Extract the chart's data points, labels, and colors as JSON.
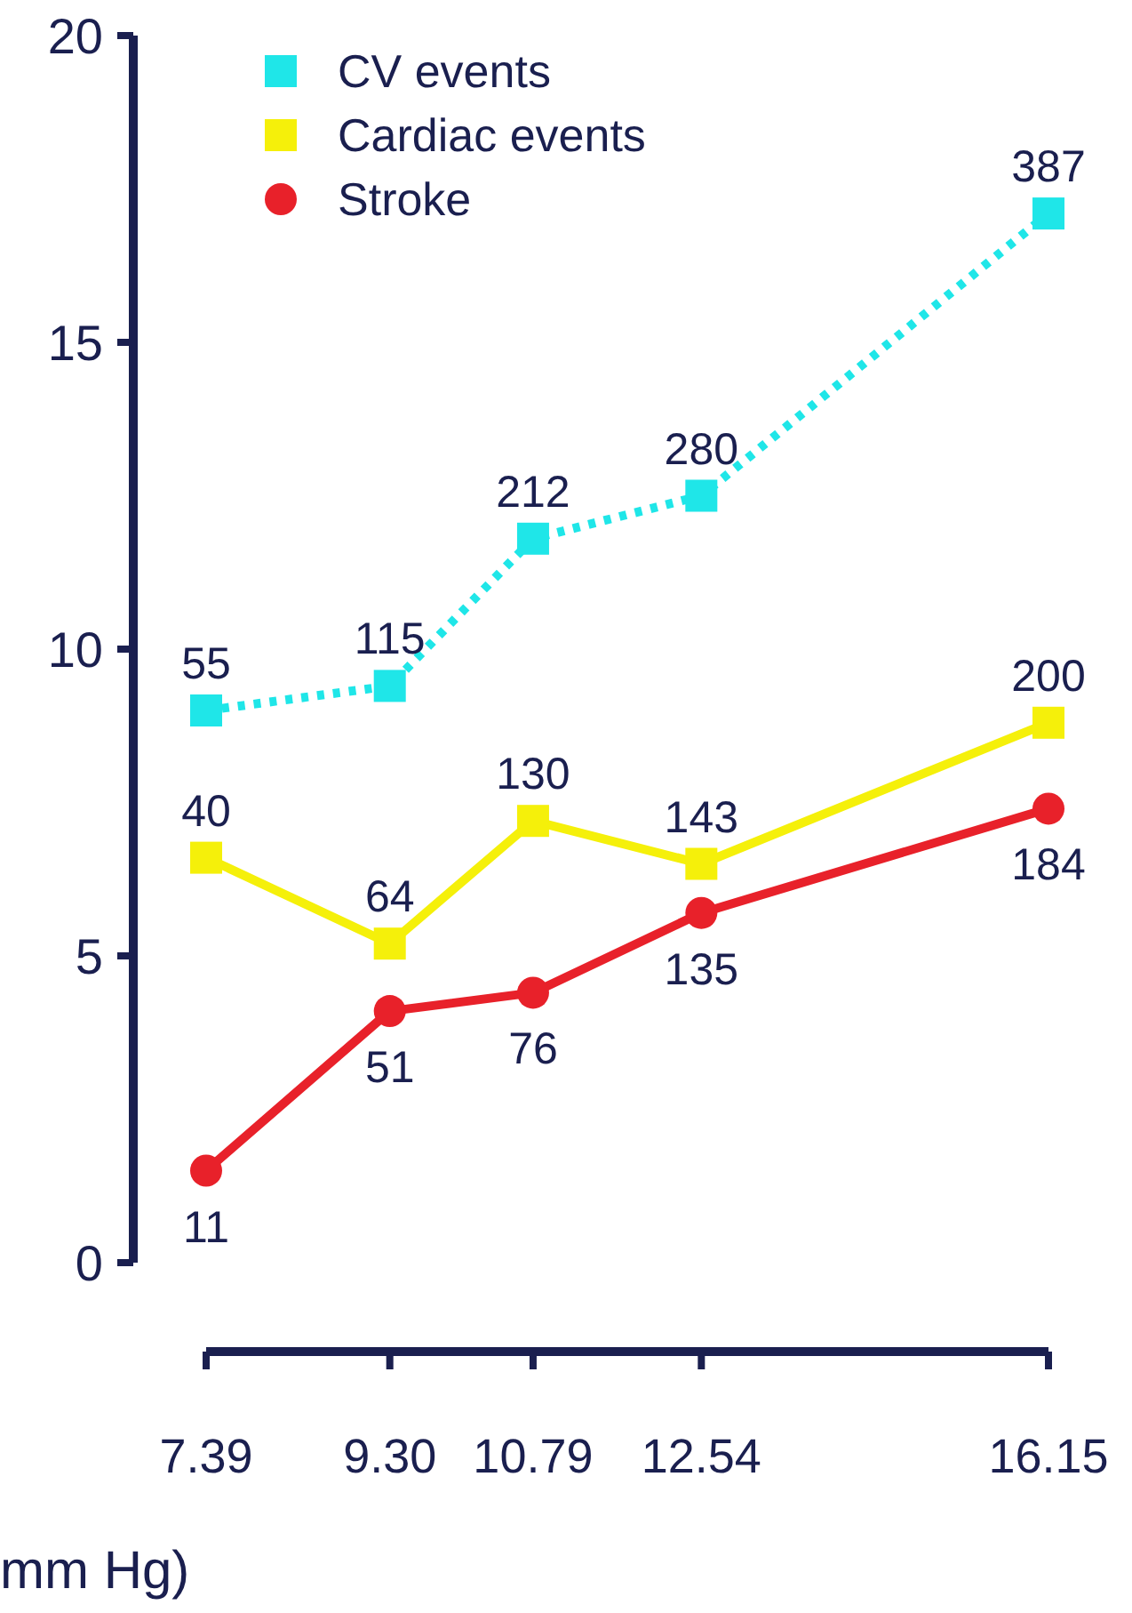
{
  "chart_data": {
    "type": "line",
    "xlabel": "mm Hg)",
    "x": [
      7.39,
      9.3,
      10.79,
      12.54,
      16.15
    ],
    "xlim": [
      7.39,
      16.15
    ],
    "xticks": [
      {
        "value": 7.39,
        "label": "7.39"
      },
      {
        "value": 9.3,
        "label": "9.30"
      },
      {
        "value": 10.79,
        "label": "10.79"
      },
      {
        "value": 12.54,
        "label": "12.54"
      },
      {
        "value": 16.15,
        "label": "16.15"
      }
    ],
    "ylim": [
      0,
      20
    ],
    "yticks": [
      0,
      5,
      10,
      15,
      20
    ],
    "grid": false,
    "legend": "top left",
    "series": [
      {
        "name": "CV events",
        "color": "#1fe6e8",
        "marker": "square",
        "line_style": "dotted",
        "values": [
          9.0,
          9.4,
          11.8,
          12.5,
          17.1
        ]
      },
      {
        "name": "Cardiac events",
        "color": "#f5f00a",
        "marker": "square",
        "line_style": "solid",
        "values": [
          6.6,
          5.2,
          7.2,
          6.5,
          8.8
        ]
      },
      {
        "name": "Stroke",
        "color": "#e8212a",
        "marker": "circle",
        "line_style": "solid",
        "values": [
          1.5,
          4.1,
          4.4,
          5.7,
          7.4
        ]
      }
    ],
    "annotations": [
      {
        "text": "55",
        "x": 7.39,
        "y": 9.0
      },
      {
        "text": "115",
        "x": 9.3,
        "y": 9.4
      },
      {
        "text": "212",
        "x": 10.79,
        "y": 11.8
      },
      {
        "text": "280",
        "x": 12.54,
        "y": 12.5
      },
      {
        "text": "387",
        "x": 16.15,
        "y": 17.1
      },
      {
        "text": "40",
        "x": 7.39,
        "y": 6.6
      },
      {
        "text": "64",
        "x": 9.3,
        "y": 5.2
      },
      {
        "text": "130",
        "x": 10.79,
        "y": 7.2
      },
      {
        "text": "143",
        "x": 12.54,
        "y": 6.5
      },
      {
        "text": "200",
        "x": 16.15,
        "y": 8.8
      },
      {
        "text": "11",
        "x": 7.39,
        "y": 1.5
      },
      {
        "text": "51",
        "x": 9.3,
        "y": 4.1
      },
      {
        "text": "76",
        "x": 10.79,
        "y": 4.4
      },
      {
        "text": "135",
        "x": 12.54,
        "y": 5.7
      },
      {
        "text": "184",
        "x": 16.15,
        "y": 7.4
      }
    ]
  }
}
